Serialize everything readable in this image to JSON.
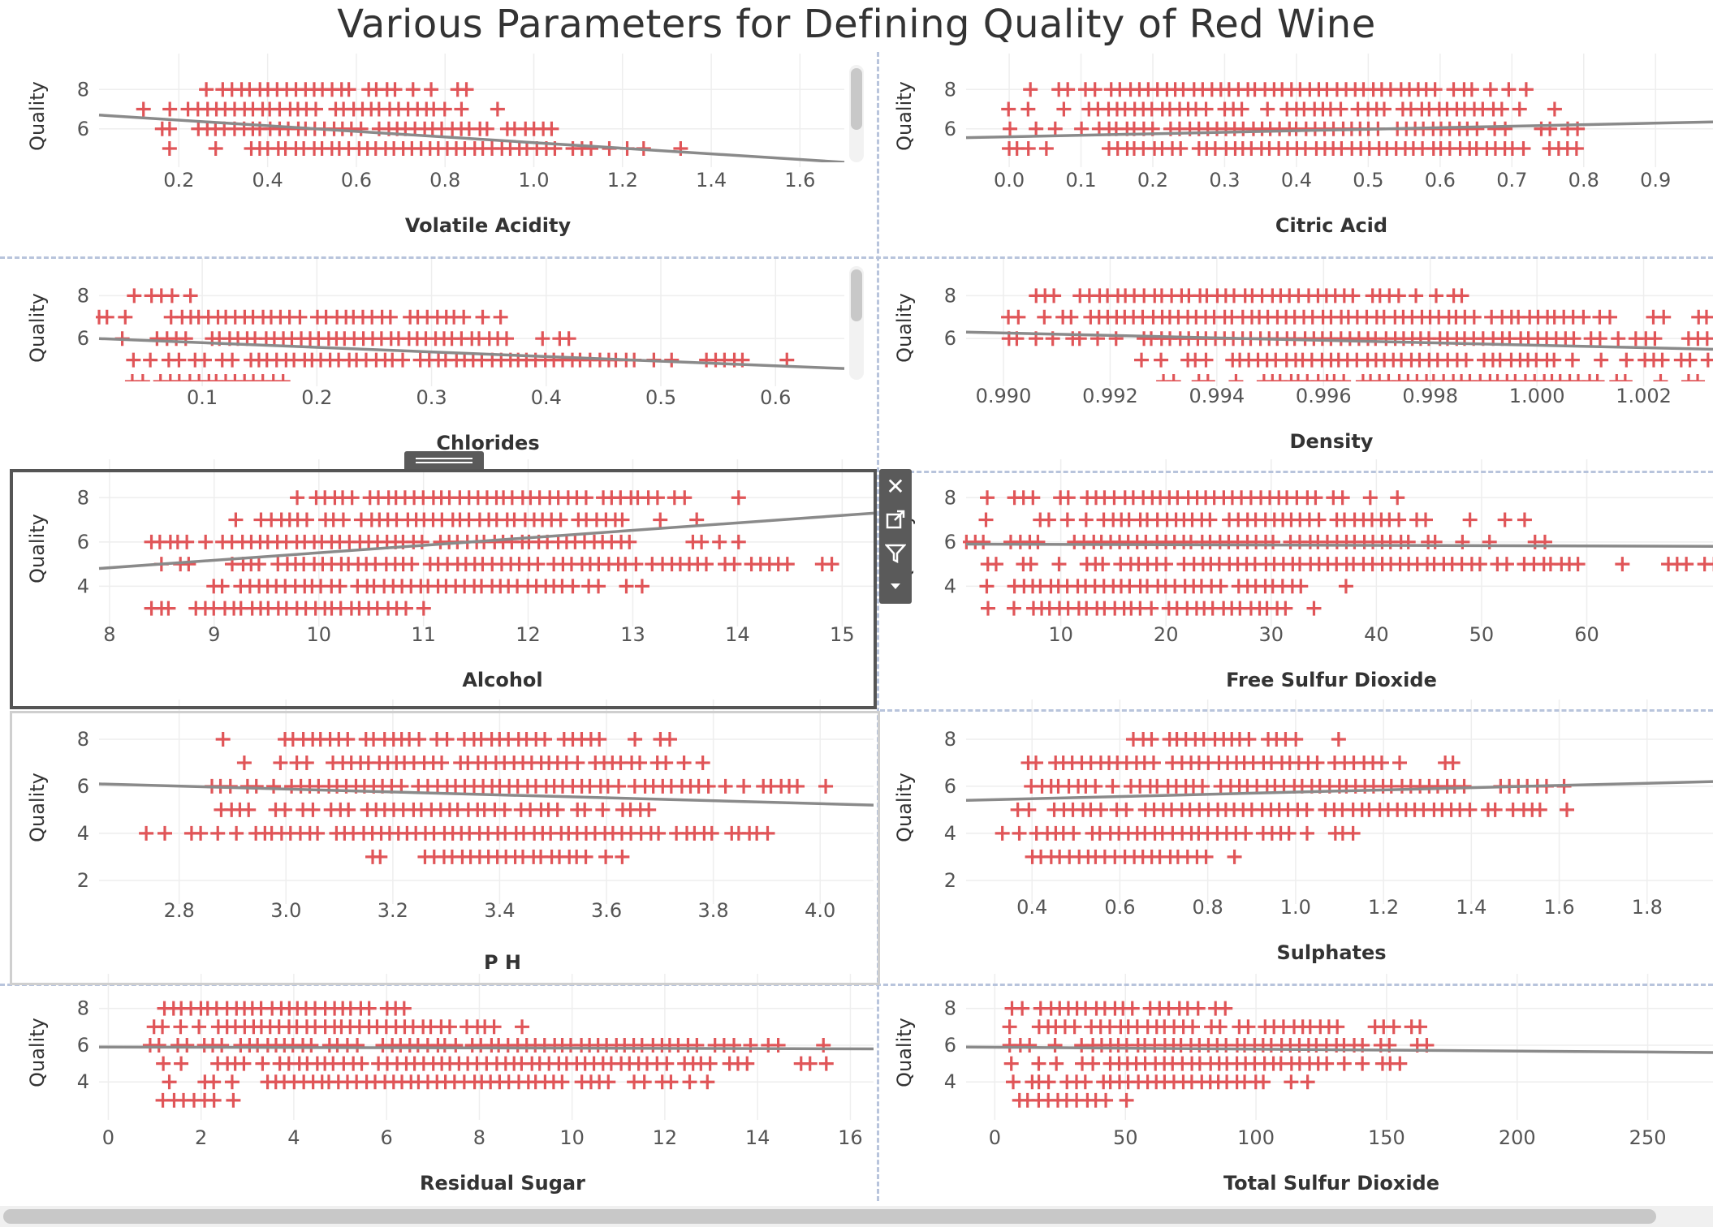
{
  "dashboard": {
    "title": "Various Parameters for Defining Quality of Red Wine"
  },
  "colors": {
    "marks": "#e05558",
    "trend": "#8a8a8a",
    "trend_dark": "#444444",
    "grid": "#eeeeee",
    "divider": "#b8c4dc"
  },
  "icons": {
    "close": "close-icon",
    "open": "open-external-icon",
    "filter": "filter-icon",
    "more": "caret-down-icon",
    "grip": "drag-grip-icon"
  },
  "chart_data": [
    {
      "type": "scatter",
      "xlabel": "Volatile Acidity",
      "ylabel": "Quality",
      "xlim": [
        0.02,
        1.7
      ],
      "ylim": [
        4.3,
        9.0
      ],
      "xticks": [
        0.2,
        0.4,
        0.6,
        0.8,
        1.0,
        1.2,
        1.4,
        1.6
      ],
      "yticks": [
        6,
        8
      ],
      "xtick_labels": [
        "0.2",
        "0.4",
        "0.6",
        "0.8",
        "1.0",
        "1.2",
        "1.4",
        "1.6"
      ],
      "ytick_labels": [
        "6",
        "8"
      ],
      "x_range_by_quality": {
        "8": [
          0.26,
          0.85
        ],
        "7": [
          0.12,
          0.92
        ],
        "6": [
          0.16,
          1.04
        ],
        "5": [
          0.18,
          1.33
        ]
      },
      "trend": {
        "x": [
          0.02,
          1.7
        ],
        "y": [
          6.7,
          4.3
        ]
      },
      "grid": true,
      "vertical_scrollbar": true
    },
    {
      "type": "scatter",
      "xlabel": "Citric Acid",
      "ylabel": "Quality",
      "xlim": [
        -0.06,
        0.98
      ],
      "ylim": [
        4.3,
        9.0
      ],
      "xticks": [
        0.0,
        0.1,
        0.2,
        0.3,
        0.4,
        0.5,
        0.6,
        0.7,
        0.8,
        0.9
      ],
      "yticks": [
        6,
        8
      ],
      "xtick_labels": [
        "0.0",
        "0.1",
        "0.2",
        "0.3",
        "0.4",
        "0.5",
        "0.6",
        "0.7",
        "0.8",
        "0.9"
      ],
      "ytick_labels": [
        "6",
        "8"
      ],
      "x_range_by_quality": {
        "8": [
          0.03,
          0.72
        ],
        "7": [
          0.0,
          0.76
        ],
        "6": [
          0.0,
          0.79
        ],
        "5": [
          0.0,
          0.79
        ]
      },
      "trend": {
        "x": [
          -0.06,
          0.98
        ],
        "y": [
          5.55,
          6.35
        ]
      },
      "grid": true
    },
    {
      "type": "scatter",
      "xlabel": "Chlorides",
      "ylabel": "Quality",
      "xlim": [
        0.01,
        0.66
      ],
      "ylim": [
        4.0,
        9.0
      ],
      "xticks": [
        0.1,
        0.2,
        0.3,
        0.4,
        0.5,
        0.6
      ],
      "yticks": [
        6,
        8
      ],
      "xtick_labels": [
        "0.1",
        "0.2",
        "0.3",
        "0.4",
        "0.5",
        "0.6"
      ],
      "ytick_labels": [
        "6",
        "8"
      ],
      "x_range_by_quality": {
        "8": [
          0.04,
          0.09
        ],
        "7": [
          0.01,
          0.36
        ],
        "6": [
          0.03,
          0.42
        ],
        "5": [
          0.04,
          0.61
        ],
        "4": [
          0.04,
          0.17
        ]
      },
      "trend": {
        "x": [
          0.01,
          0.66
        ],
        "y": [
          6.0,
          4.6
        ]
      },
      "grid": true,
      "vertical_scrollbar": true
    },
    {
      "type": "scatter",
      "xlabel": "Density",
      "ylabel": "Quality",
      "xlim": [
        0.9893,
        1.0033
      ],
      "ylim": [
        4.0,
        9.0
      ],
      "xticks": [
        0.99,
        0.992,
        0.994,
        0.996,
        0.998,
        1.0,
        1.002
      ],
      "yticks": [
        6,
        8
      ],
      "xtick_labels": [
        "0.990",
        "0.992",
        "0.994",
        "0.996",
        "0.998",
        "1.000",
        "1.002"
      ],
      "ytick_labels": [
        "6",
        "8"
      ],
      "x_range_by_quality": {
        "8": [
          0.9906,
          0.9986
        ],
        "7": [
          0.9901,
          1.0032
        ],
        "6": [
          0.9901,
          1.0032
        ],
        "5": [
          0.9926,
          1.0032
        ],
        "4": [
          0.993,
          1.003
        ]
      },
      "trend": {
        "x": [
          0.9893,
          1.0033
        ],
        "y": [
          6.3,
          5.5
        ]
      },
      "grid": true
    },
    {
      "type": "scatter",
      "xlabel": "Alcohol",
      "ylabel": "Quality",
      "xlim": [
        7.9,
        15.3
      ],
      "ylim": [
        2.4,
        9.0
      ],
      "xticks": [
        8,
        9,
        10,
        11,
        12,
        13,
        14,
        15
      ],
      "yticks": [
        4,
        6,
        8
      ],
      "xtick_labels": [
        "8",
        "9",
        "10",
        "11",
        "12",
        "13",
        "14",
        "15"
      ],
      "ytick_labels": [
        "4",
        "6",
        "8"
      ],
      "x_range_by_quality": {
        "8": [
          9.8,
          14.0
        ],
        "7": [
          9.2,
          13.6
        ],
        "6": [
          8.4,
          14.0
        ],
        "5": [
          8.5,
          14.9
        ],
        "4": [
          9.0,
          13.1
        ],
        "3": [
          8.4,
          11.0
        ]
      },
      "trend": {
        "x": [
          7.9,
          15.3
        ],
        "y": [
          4.8,
          7.3
        ]
      },
      "grid": true,
      "selected": true
    },
    {
      "type": "scatter",
      "xlabel": "Free Sulfur Dioxide",
      "ylabel": "Quality",
      "xlim": [
        1,
        72
      ],
      "ylim": [
        2.4,
        9.0
      ],
      "xticks": [
        10,
        20,
        30,
        40,
        50,
        60
      ],
      "yticks": [
        4,
        6,
        8
      ],
      "xtick_labels": [
        "10",
        "20",
        "30",
        "40",
        "50",
        "60"
      ],
      "ytick_labels": [
        "4",
        "6",
        "8"
      ],
      "x_range_by_quality": {
        "8": [
          3,
          42
        ],
        "7": [
          3,
          54
        ],
        "6": [
          1,
          56
        ],
        "5": [
          3,
          72
        ],
        "4": [
          3,
          37
        ],
        "3": [
          3,
          34
        ]
      },
      "trend": {
        "x": [
          1,
          72
        ],
        "y": [
          5.9,
          5.8
        ]
      },
      "grid": true
    },
    {
      "type": "scatter",
      "xlabel": "P H",
      "ylabel": "Quality",
      "xlim": [
        2.65,
        4.1
      ],
      "ylim": [
        1.2,
        9.0
      ],
      "xticks": [
        2.8,
        3.0,
        3.2,
        3.4,
        3.6,
        3.8,
        4.0
      ],
      "yticks": [
        2,
        4,
        6,
        8
      ],
      "xtick_labels": [
        "2.8",
        "3.0",
        "3.2",
        "3.4",
        "3.6",
        "3.8",
        "4.0"
      ],
      "ytick_labels": [
        "2",
        "4",
        "6",
        "8"
      ],
      "x_range_by_quality": {
        "8": [
          2.88,
          3.72
        ],
        "7": [
          2.92,
          3.78
        ],
        "6": [
          2.86,
          4.01
        ],
        "5": [
          2.88,
          3.68
        ],
        "4": [
          2.74,
          3.9
        ],
        "3": [
          3.16,
          3.63
        ]
      },
      "trend": {
        "x": [
          2.65,
          4.1
        ],
        "y": [
          6.1,
          5.2
        ]
      },
      "grid": true
    },
    {
      "type": "scatter",
      "xlabel": "Sulphates",
      "ylabel": "Quality",
      "xlim": [
        0.25,
        1.95
      ],
      "ylim": [
        1.2,
        9.0
      ],
      "xticks": [
        0.4,
        0.6,
        0.8,
        1.0,
        1.2,
        1.4,
        1.6,
        1.8
      ],
      "yticks": [
        2,
        4,
        6,
        8
      ],
      "xtick_labels": [
        "0.4",
        "0.6",
        "0.8",
        "1.0",
        "1.2",
        "1.4",
        "1.6",
        "1.8"
      ],
      "ytick_labels": [
        "2",
        "4",
        "6",
        "8"
      ],
      "x_range_by_quality": {
        "8": [
          0.63,
          1.1
        ],
        "7": [
          0.39,
          1.36
        ],
        "6": [
          0.4,
          1.61
        ],
        "5": [
          0.37,
          1.62
        ],
        "4": [
          0.33,
          1.13
        ],
        "3": [
          0.4,
          0.86
        ]
      },
      "trend": {
        "x": [
          0.25,
          1.95
        ],
        "y": [
          5.4,
          6.2
        ]
      },
      "grid": true
    },
    {
      "type": "scatter",
      "xlabel": "Residual Sugar",
      "ylabel": "Quality",
      "xlim": [
        -0.2,
        16.5
      ],
      "ylim": [
        2.2,
        9.0
      ],
      "xticks": [
        0,
        2,
        4,
        6,
        8,
        10,
        12,
        14,
        16
      ],
      "yticks": [
        4,
        6,
        8
      ],
      "xtick_labels": [
        "0",
        "2",
        "4",
        "6",
        "8",
        "10",
        "12",
        "14",
        "16"
      ],
      "ytick_labels": [
        "4",
        "6",
        "8"
      ],
      "x_range_by_quality": {
        "8": [
          1.2,
          6.4
        ],
        "7": [
          1.0,
          8.9
        ],
        "6": [
          0.9,
          15.4
        ],
        "5": [
          1.2,
          15.5
        ],
        "4": [
          1.3,
          12.9
        ],
        "3": [
          1.2,
          2.7
        ]
      },
      "trend": {
        "x": [
          -0.2,
          16.5
        ],
        "y": [
          5.9,
          5.8
        ]
      },
      "grid": true
    },
    {
      "type": "scatter",
      "xlabel": "Total Sulfur Dioxide",
      "ylabel": "Quality",
      "xlim": [
        -11,
        275
      ],
      "ylim": [
        2.2,
        9.0
      ],
      "xticks": [
        0,
        50,
        100,
        150,
        200,
        250
      ],
      "yticks": [
        4,
        6,
        8
      ],
      "xtick_labels": [
        "0",
        "50",
        "100",
        "150",
        "200",
        "250"
      ],
      "ytick_labels": [
        "4",
        "6",
        "8"
      ],
      "x_range_by_quality": {
        "8": [
          7,
          88
        ],
        "7": [
          6,
          163
        ],
        "6": [
          6,
          165
        ],
        "5": [
          6,
          155
        ],
        "4": [
          7,
          120
        ],
        "3": [
          9,
          50
        ]
      },
      "trend": {
        "x": [
          -11,
          275
        ],
        "y": [
          5.9,
          5.6
        ]
      },
      "grid": true
    }
  ]
}
